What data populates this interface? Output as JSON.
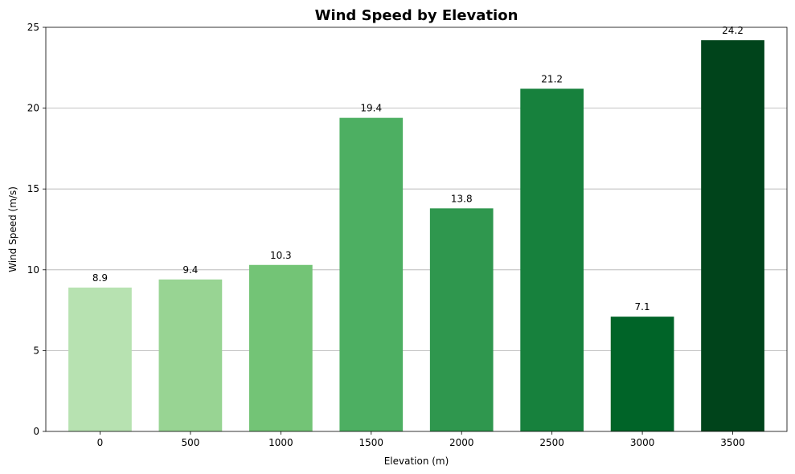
{
  "chart_data": {
    "type": "bar",
    "title": "Wind Speed by Elevation",
    "xlabel": "Elevation (m)",
    "ylabel": "Wind Speed (m/s)",
    "categories": [
      "0",
      "500",
      "1000",
      "1500",
      "2000",
      "2500",
      "3000",
      "3500"
    ],
    "values": [
      8.9,
      9.4,
      10.3,
      19.4,
      13.8,
      21.2,
      7.1,
      24.2
    ],
    "value_labels": [
      "8.9",
      "9.4",
      "10.3",
      "19.4",
      "13.8",
      "21.2",
      "7.1",
      "24.2"
    ],
    "colors": [
      "#b7e2b1",
      "#98d493",
      "#73c476",
      "#4daf62",
      "#2f974e",
      "#17813d",
      "#006428",
      "#00441b"
    ],
    "ylim": [
      0,
      25
    ],
    "yticks": [
      0,
      5,
      10,
      15,
      20,
      25
    ],
    "ytick_labels": [
      "0",
      "5",
      "10",
      "15",
      "20",
      "25"
    ],
    "grid": "y",
    "legend": "none"
  }
}
